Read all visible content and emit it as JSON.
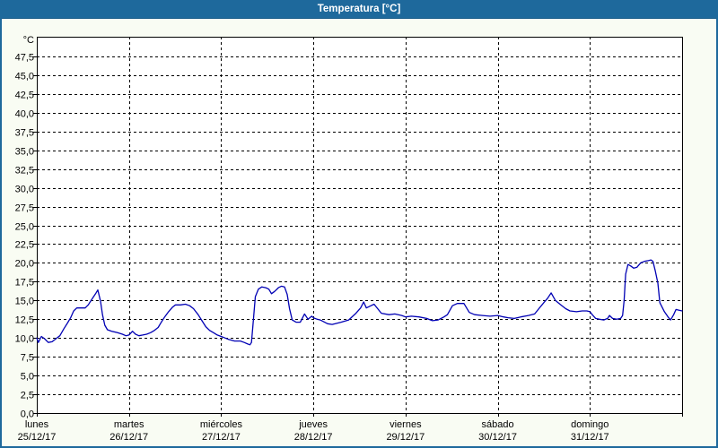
{
  "window": {
    "title": "Temperatura [°C]"
  },
  "colors": {
    "title_bar": "#1e699c",
    "title_text": "#ffffff",
    "window_border": "#1e699c",
    "background": "#f9fcf3",
    "plot_background": "#ffffff",
    "grid": "#000000",
    "label_text": "#000000",
    "series_line": "#0000b4"
  },
  "chart_data": {
    "type": "line",
    "title": "Temperatura [°C]",
    "legend": "none",
    "grid": "dashed",
    "y_axis": {
      "unit_label": "°C",
      "min": 0,
      "max": 47.5,
      "tick_step": 2.5,
      "tick_labels": [
        "0,0",
        "2,5",
        "5,0",
        "7,5",
        "10,0",
        "12,5",
        "15,0",
        "17,5",
        "20,0",
        "22,5",
        "25,0",
        "27,5",
        "30,0",
        "32,5",
        "35,0",
        "37,5",
        "40,0",
        "42,5",
        "45,0",
        "47,5"
      ]
    },
    "x_axis": {
      "range_hours": [
        0,
        168
      ],
      "hours_per_day": 24,
      "days": [
        {
          "name": "lunes",
          "date": "25/12/17"
        },
        {
          "name": "martes",
          "date": "26/12/17"
        },
        {
          "name": "miércoles",
          "date": "27/12/17"
        },
        {
          "name": "jueves",
          "date": "28/12/17"
        },
        {
          "name": "viernes",
          "date": "29/12/17"
        },
        {
          "name": "sábado",
          "date": "30/12/17"
        },
        {
          "name": "domingo",
          "date": "31/12/17"
        }
      ]
    },
    "series": [
      {
        "name": "Temperatura",
        "color": "#0000b4",
        "points": [
          [
            0,
            10.0
          ],
          [
            0.4,
            9.4
          ],
          [
            1.2,
            10.2
          ],
          [
            2,
            9.9
          ],
          [
            3,
            9.4
          ],
          [
            4,
            9.5
          ],
          [
            5,
            9.9
          ],
          [
            6,
            10.3
          ],
          [
            7,
            11.2
          ],
          [
            8,
            12.0
          ],
          [
            8.8,
            12.7
          ],
          [
            9.6,
            13.6
          ],
          [
            10.4,
            14.0
          ],
          [
            11.5,
            14.0
          ],
          [
            12.6,
            14.0
          ],
          [
            13.4,
            14.4
          ],
          [
            14.4,
            15.2
          ],
          [
            15.3,
            15.9
          ],
          [
            15.9,
            16.4
          ],
          [
            16.6,
            14.9
          ],
          [
            17.1,
            13.1
          ],
          [
            17.7,
            11.7
          ],
          [
            18.4,
            11.1
          ],
          [
            19.5,
            10.9
          ],
          [
            21,
            10.7
          ],
          [
            22.3,
            10.5
          ],
          [
            23.2,
            10.3
          ],
          [
            24,
            10.4
          ],
          [
            24.9,
            10.9
          ],
          [
            25.7,
            10.5
          ],
          [
            26.6,
            10.3
          ],
          [
            27.6,
            10.4
          ],
          [
            28.6,
            10.5
          ],
          [
            29.6,
            10.7
          ],
          [
            30.6,
            11.0
          ],
          [
            31.6,
            11.4
          ],
          [
            32.4,
            12.1
          ],
          [
            33.3,
            12.8
          ],
          [
            34.3,
            13.5
          ],
          [
            35.3,
            14.1
          ],
          [
            36.1,
            14.4
          ],
          [
            37.4,
            14.4
          ],
          [
            38.7,
            14.5
          ],
          [
            39.8,
            14.3
          ],
          [
            40.8,
            13.9
          ],
          [
            42,
            13.1
          ],
          [
            43,
            12.3
          ],
          [
            44,
            11.5
          ],
          [
            45,
            11.0
          ],
          [
            46,
            10.7
          ],
          [
            47,
            10.4
          ],
          [
            48,
            10.2
          ],
          [
            49,
            10.0
          ],
          [
            50,
            9.8
          ],
          [
            51.5,
            9.6
          ],
          [
            53,
            9.6
          ],
          [
            54,
            9.4
          ],
          [
            54.9,
            9.2
          ],
          [
            55.5,
            9.1
          ],
          [
            55.9,
            9.4
          ],
          [
            56.4,
            12.5
          ],
          [
            56.9,
            15.5
          ],
          [
            57.7,
            16.5
          ],
          [
            58.6,
            16.8
          ],
          [
            59.6,
            16.7
          ],
          [
            60.4,
            16.5
          ],
          [
            61.1,
            15.9
          ],
          [
            61.9,
            16.2
          ],
          [
            62.9,
            16.7
          ],
          [
            63.7,
            16.9
          ],
          [
            64.5,
            16.8
          ],
          [
            65.2,
            15.8
          ],
          [
            65.8,
            13.9
          ],
          [
            66.5,
            12.4
          ],
          [
            67.5,
            12.1
          ],
          [
            68.6,
            12.1
          ],
          [
            69.7,
            13.2
          ],
          [
            70.6,
            12.5
          ],
          [
            71.6,
            12.9
          ],
          [
            72,
            12.7
          ],
          [
            73,
            12.5
          ],
          [
            73.8,
            12.4
          ],
          [
            75.7,
            11.9
          ],
          [
            76.9,
            11.8
          ],
          [
            79.2,
            12.1
          ],
          [
            81.2,
            12.4
          ],
          [
            83.1,
            13.3
          ],
          [
            84.3,
            14.0
          ],
          [
            85.1,
            14.8
          ],
          [
            85.8,
            14.0
          ],
          [
            87,
            14.3
          ],
          [
            87.8,
            14.5
          ],
          [
            89.7,
            13.3
          ],
          [
            91.7,
            13.1
          ],
          [
            93.2,
            13.2
          ],
          [
            95,
            13.0
          ],
          [
            96,
            12.8
          ],
          [
            97.5,
            12.9
          ],
          [
            99.5,
            12.8
          ],
          [
            101.5,
            12.6
          ],
          [
            103,
            12.3
          ],
          [
            104.5,
            12.4
          ],
          [
            106,
            12.8
          ],
          [
            106.9,
            13.1
          ],
          [
            108.2,
            14.3
          ],
          [
            109.5,
            14.6
          ],
          [
            111.2,
            14.6
          ],
          [
            112.6,
            13.4
          ],
          [
            114,
            13.1
          ],
          [
            116,
            13.0
          ],
          [
            118,
            12.9
          ],
          [
            120,
            13.0
          ],
          [
            121.5,
            12.8
          ],
          [
            122.7,
            12.7
          ],
          [
            124.3,
            12.6
          ],
          [
            126,
            12.8
          ],
          [
            128,
            13.0
          ],
          [
            129.6,
            13.2
          ],
          [
            130.7,
            13.9
          ],
          [
            132,
            14.7
          ],
          [
            133,
            15.3
          ],
          [
            133.9,
            16.0
          ],
          [
            135,
            15.0
          ],
          [
            136.2,
            14.5
          ],
          [
            137.7,
            13.9
          ],
          [
            138.8,
            13.6
          ],
          [
            140.5,
            13.5
          ],
          [
            142,
            13.6
          ],
          [
            143.2,
            13.6
          ],
          [
            144,
            13.5
          ],
          [
            144.6,
            13.1
          ],
          [
            145.5,
            12.6
          ],
          [
            146.5,
            12.5
          ],
          [
            147.6,
            12.4
          ],
          [
            148.6,
            12.6
          ],
          [
            149.1,
            13.0
          ],
          [
            149.9,
            12.6
          ],
          [
            151,
            12.5
          ],
          [
            152,
            12.6
          ],
          [
            152.5,
            13.0
          ],
          [
            152.9,
            15.0
          ],
          [
            153.3,
            18.5
          ],
          [
            153.9,
            19.8
          ],
          [
            154.6,
            19.6
          ],
          [
            155.4,
            19.3
          ],
          [
            156.2,
            19.4
          ],
          [
            157.2,
            20.0
          ],
          [
            158.2,
            20.2
          ],
          [
            159.2,
            20.3
          ],
          [
            159.9,
            20.4
          ],
          [
            160.4,
            20.2
          ],
          [
            161,
            19.0
          ],
          [
            161.7,
            17.3
          ],
          [
            162.2,
            14.7
          ],
          [
            163.4,
            13.5
          ],
          [
            164.5,
            12.7
          ],
          [
            165,
            12.4
          ],
          [
            165.8,
            13.1
          ],
          [
            166.4,
            13.8
          ],
          [
            167.2,
            13.7
          ],
          [
            168,
            13.6
          ]
        ]
      }
    ]
  }
}
